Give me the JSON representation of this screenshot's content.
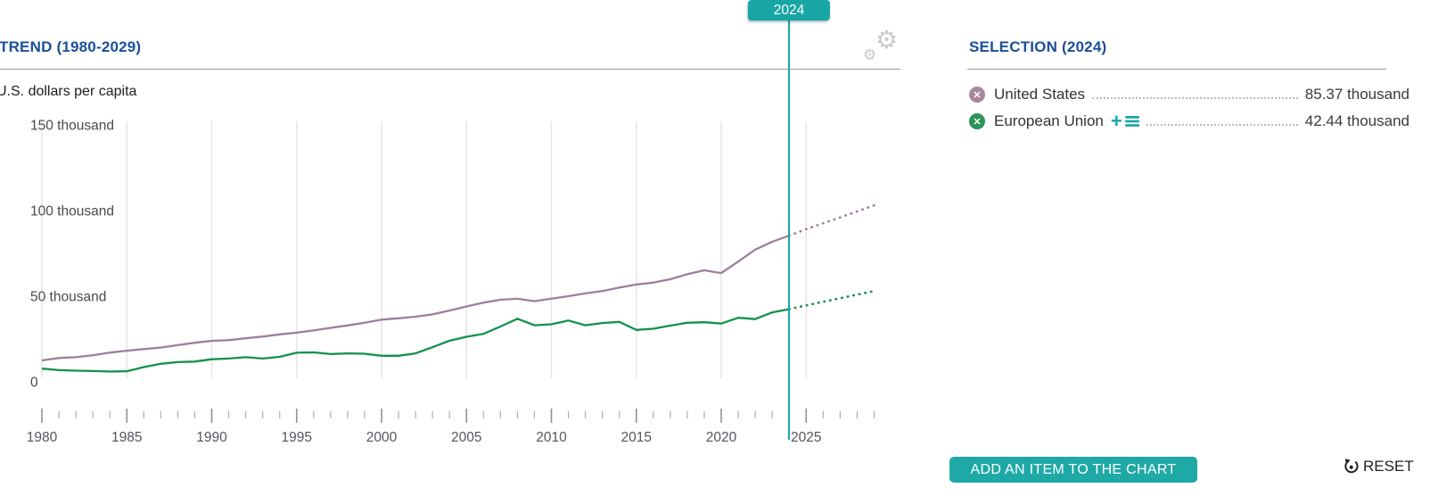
{
  "marker": {
    "year_label": "2024"
  },
  "trend_panel": {
    "title": "TREND (1980-2029)",
    "unit_label": "U.S. dollars per capita"
  },
  "selection_panel": {
    "title": "SELECTION (2024)",
    "rows": [
      {
        "label": "United States",
        "value": "85.37 thousand",
        "icon_color": "#A8879E",
        "has_add_icons": false
      },
      {
        "label": "European Union",
        "value": "42.44 thousand",
        "icon_color": "#2B9355",
        "has_add_icons": true
      }
    ]
  },
  "actions": {
    "add_button_label": "ADD AN ITEM TO THE CHART",
    "reset_label": "RESET"
  },
  "colors": {
    "accent": "#17A6A3",
    "header_blue": "#1B4E9B",
    "grid": "#E4E4E4",
    "tick_minor": "#AAAEBA",
    "tick_major": "#8E92A0",
    "axis_text": "#4a4a4a",
    "year_text": "#55565e"
  },
  "chart_data": {
    "type": "line",
    "title": "TREND (1980-2029)",
    "ylabel": "U.S. dollars per capita",
    "x_range": [
      1980,
      2029
    ],
    "ylim": [
      0,
      150
    ],
    "solid_until": 2024,
    "marker_year": 2024,
    "grid": "vertical-only",
    "y_ticks": [
      {
        "value": 0,
        "label": "0"
      },
      {
        "value": 50,
        "label": "50 thousand"
      },
      {
        "value": 100,
        "label": "100 thousand"
      },
      {
        "value": 150,
        "label": "150 thousand"
      }
    ],
    "x_major_ticks": [
      1980,
      1985,
      1990,
      1995,
      2000,
      2005,
      2010,
      2015,
      2020,
      2025
    ],
    "years": [
      1980,
      1981,
      1982,
      1983,
      1984,
      1985,
      1986,
      1987,
      1988,
      1989,
      1990,
      1991,
      1992,
      1993,
      1994,
      1995,
      1996,
      1997,
      1998,
      1999,
      2000,
      2001,
      2002,
      2003,
      2004,
      2005,
      2006,
      2007,
      2008,
      2009,
      2010,
      2011,
      2012,
      2013,
      2014,
      2015,
      2016,
      2017,
      2018,
      2019,
      2020,
      2021,
      2022,
      2023,
      2024,
      2025,
      2026,
      2027,
      2028,
      2029
    ],
    "series": [
      {
        "name": "United States",
        "color": "#9E7F9A",
        "values": [
          12.5,
          13.9,
          14.4,
          15.5,
          17.1,
          18.2,
          19.1,
          20.0,
          21.4,
          22.8,
          23.9,
          24.3,
          25.4,
          26.4,
          27.7,
          28.7,
          30.0,
          31.5,
          32.9,
          34.5,
          36.3,
          37.1,
          38.0,
          39.4,
          41.6,
          44.0,
          46.2,
          47.9,
          48.5,
          47.1,
          48.6,
          50.0,
          51.6,
          53.0,
          55.0,
          56.8,
          57.9,
          59.9,
          62.8,
          65.1,
          63.5,
          70.2,
          77.2,
          81.7,
          85.37,
          89.1,
          92.6,
          96.0,
          99.5,
          103.0
        ]
      },
      {
        "name": "European Union",
        "color": "#12914B",
        "values": [
          7.7,
          6.8,
          6.5,
          6.3,
          6.0,
          6.2,
          8.6,
          10.5,
          11.5,
          11.8,
          13.2,
          13.6,
          14.4,
          13.6,
          14.6,
          17.0,
          17.2,
          16.2,
          16.6,
          16.4,
          15.2,
          15.2,
          16.6,
          20.2,
          24.0,
          26.3,
          28.0,
          32.3,
          36.8,
          33.0,
          33.6,
          35.8,
          33.0,
          34.3,
          35.0,
          30.3,
          31.0,
          32.8,
          34.5,
          34.8,
          34.0,
          37.4,
          36.6,
          40.5,
          42.44,
          44.6,
          46.7,
          48.8,
          50.9,
          53.0
        ]
      }
    ]
  }
}
